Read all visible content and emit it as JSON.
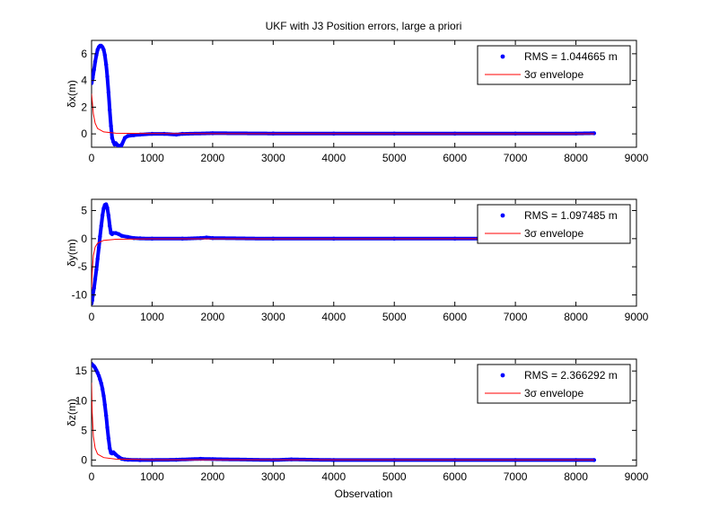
{
  "figure": {
    "title": "UKF with J3 Position errors, large a priori",
    "xlabel": "Observation"
  },
  "chart_data": [
    {
      "type": "line",
      "title": "UKF with J3 Position errors, large a priori",
      "xlabel": "",
      "ylabel": "δx(m)",
      "xlim": [
        0,
        9000
      ],
      "ylim": [
        -1,
        7
      ],
      "xticks": [
        0,
        1000,
        2000,
        3000,
        4000,
        5000,
        6000,
        7000,
        8000,
        9000
      ],
      "yticks": [
        0,
        2,
        4,
        6
      ],
      "grid": false,
      "legend_position": "top-right",
      "series": [
        {
          "name": "RMS = 1.044665 m",
          "color": "#0000ff",
          "marker": "point",
          "x": [
            0,
            20,
            40,
            60,
            80,
            100,
            120,
            140,
            160,
            180,
            200,
            220,
            240,
            260,
            280,
            300,
            320,
            340,
            360,
            380,
            400,
            420,
            440,
            460,
            480,
            500,
            550,
            600,
            700,
            800,
            1000,
            1200,
            1400,
            1500,
            2000,
            3000,
            4000,
            5000,
            6000,
            7000,
            8000,
            8300
          ],
          "y": [
            3.8,
            4.2,
            4.8,
            5.4,
            5.9,
            6.3,
            6.5,
            6.6,
            6.6,
            6.5,
            6.3,
            5.9,
            5.2,
            4.3,
            3.1,
            1.8,
            0.6,
            -0.3,
            -0.6,
            -0.8,
            -0.7,
            -0.8,
            -0.9,
            -0.9,
            -1.0,
            -0.8,
            -0.3,
            -0.15,
            -0.1,
            -0.05,
            0.0,
            0.0,
            -0.05,
            0.0,
            0.05,
            0.03,
            0.02,
            0.02,
            0.02,
            0.02,
            0.03,
            0.05
          ]
        },
        {
          "name": "3σ envelope",
          "color": "#ff0000",
          "marker": "line",
          "x": [
            0,
            10,
            30,
            60,
            100,
            200,
            400,
            1000,
            8300
          ],
          "y": [
            3.0,
            2.5,
            1.5,
            0.8,
            0.4,
            0.15,
            0.05,
            0.02,
            0.01
          ]
        }
      ]
    },
    {
      "type": "line",
      "title": "",
      "xlabel": "",
      "ylabel": "δy(m)",
      "xlim": [
        0,
        9000
      ],
      "ylim": [
        -12,
        7
      ],
      "xticks": [
        0,
        1000,
        2000,
        3000,
        4000,
        5000,
        6000,
        7000,
        8000,
        9000
      ],
      "yticks": [
        -10,
        -5,
        0,
        5
      ],
      "grid": false,
      "legend_position": "top-right",
      "series": [
        {
          "name": "RMS = 1.097485 m",
          "color": "#0000ff",
          "marker": "point",
          "x": [
            0,
            10,
            20,
            40,
            60,
            80,
            100,
            120,
            140,
            160,
            180,
            200,
            220,
            240,
            260,
            280,
            300,
            320,
            340,
            360,
            400,
            450,
            500,
            600,
            700,
            800,
            1000,
            1500,
            1800,
            1900,
            2000,
            3000,
            4000,
            5000,
            6000,
            7000,
            8000,
            8300
          ],
          "y": [
            -11.5,
            -11.0,
            -10.2,
            -8.8,
            -7.2,
            -5.5,
            -3.6,
            -1.6,
            0.4,
            2.3,
            4.1,
            5.4,
            6.0,
            6.1,
            5.5,
            4.1,
            2.3,
            1.0,
            0.8,
            1.0,
            1.0,
            0.8,
            0.5,
            0.3,
            0.1,
            0.05,
            0.0,
            0.0,
            0.1,
            0.2,
            0.1,
            0.0,
            0.0,
            0.0,
            0.0,
            0.0,
            0.0,
            0.0
          ]
        },
        {
          "name": "3σ envelope",
          "color": "#ff0000",
          "marker": "line",
          "x": [
            0,
            10,
            30,
            60,
            100,
            200,
            400,
            1000,
            8300
          ],
          "y": [
            -9.0,
            -6.0,
            -3.0,
            -1.5,
            -0.8,
            -0.3,
            -0.1,
            -0.03,
            -0.01
          ]
        }
      ]
    },
    {
      "type": "line",
      "title": "",
      "xlabel": "Observation",
      "ylabel": "δz(m)",
      "xlim": [
        0,
        9000
      ],
      "ylim": [
        -1,
        17
      ],
      "xticks": [
        0,
        1000,
        2000,
        3000,
        4000,
        5000,
        6000,
        7000,
        8000,
        9000
      ],
      "yticks": [
        0,
        5,
        10,
        15
      ],
      "grid": false,
      "legend_position": "top-right",
      "series": [
        {
          "name": "RMS = 2.366292 m",
          "color": "#0000ff",
          "marker": "point",
          "x": [
            0,
            20,
            40,
            60,
            80,
            100,
            120,
            140,
            160,
            180,
            200,
            220,
            240,
            260,
            280,
            300,
            320,
            340,
            360,
            380,
            400,
            450,
            500,
            550,
            600,
            800,
            1000,
            1400,
            1800,
            2000,
            3000,
            3300,
            4000,
            5000,
            6000,
            7000,
            8000,
            8300
          ],
          "y": [
            16.2,
            16.0,
            15.8,
            15.5,
            15.1,
            14.7,
            14.2,
            13.6,
            12.9,
            12.0,
            10.8,
            9.3,
            7.5,
            5.5,
            3.6,
            2.0,
            1.2,
            1.1,
            1.3,
            1.1,
            0.9,
            0.5,
            0.2,
            0.1,
            0.05,
            0.0,
            0.0,
            0.05,
            0.2,
            0.15,
            0.0,
            0.1,
            0.0,
            0.0,
            0.0,
            0.0,
            0.0,
            0.0
          ]
        },
        {
          "name": "3σ envelope",
          "color": "#ff0000",
          "marker": "line",
          "x": [
            0,
            10,
            30,
            60,
            100,
            200,
            400,
            1000,
            8300
          ],
          "y": [
            13.0,
            8.0,
            4.0,
            2.0,
            1.0,
            0.4,
            0.15,
            0.05,
            0.01
          ]
        }
      ]
    }
  ]
}
